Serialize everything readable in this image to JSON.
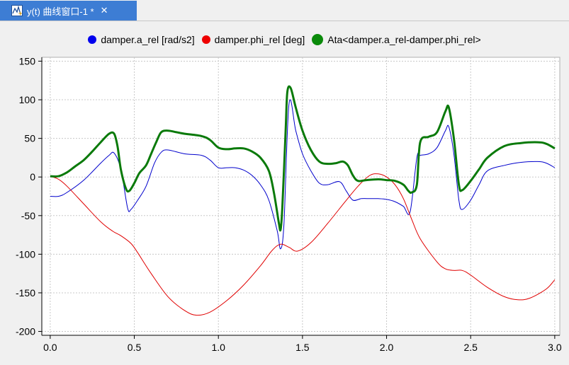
{
  "tab": {
    "title": "y(t) 曲线窗口-1 *",
    "icon": "plot-window-icon",
    "close_label": "✕",
    "color": "#3d7dd4"
  },
  "chart_data": {
    "type": "line",
    "xlim": [
      -0.05,
      3.03
    ],
    "ylim": [
      -205,
      155
    ],
    "xticks": [
      0.0,
      0.5,
      1.0,
      1.5,
      2.0,
      2.5,
      3.0
    ],
    "xtick_labels": [
      "0.0",
      "0.5",
      "1.0",
      "1.5",
      "2.0",
      "2.5",
      "3.0"
    ],
    "yticks": [
      150,
      100,
      50,
      0,
      -50,
      -100,
      -150,
      -200
    ],
    "ytick_labels": [
      "150",
      "100",
      "50",
      "0",
      "-50",
      "-100",
      "-150",
      "-200"
    ],
    "grid": true,
    "legend_placement": "top-center",
    "series": [
      {
        "name": "damper.a_rel [rad/s2]",
        "color": "#0000cc",
        "width": 1,
        "x": [
          0.0,
          0.05,
          0.1,
          0.2,
          0.3,
          0.35,
          0.38,
          0.42,
          0.46,
          0.48,
          0.52,
          0.57,
          0.62,
          0.66,
          0.7,
          0.8,
          0.9,
          0.95,
          1.0,
          1.05,
          1.1,
          1.15,
          1.2,
          1.25,
          1.3,
          1.35,
          1.37,
          1.39,
          1.42,
          1.46,
          1.5,
          1.55,
          1.6,
          1.65,
          1.72,
          1.76,
          1.8,
          1.85,
          1.9,
          1.95,
          2.0,
          2.05,
          2.1,
          2.14,
          2.18,
          2.2,
          2.25,
          2.3,
          2.35,
          2.37,
          2.4,
          2.43,
          2.45,
          2.5,
          2.55,
          2.6,
          2.7,
          2.8,
          2.9,
          2.95,
          3.0
        ],
        "y": [
          -25,
          -25,
          -20,
          -4,
          18,
          28,
          31,
          10,
          -40,
          -42,
          -30,
          -12,
          18,
          32,
          35,
          30,
          28,
          22,
          12,
          12,
          12,
          9,
          2,
          -10,
          -30,
          -70,
          -93,
          -60,
          95,
          60,
          30,
          8,
          -8,
          -10,
          -6,
          -18,
          -30,
          -28,
          -28,
          -28,
          -29,
          -32,
          -38,
          -45,
          25,
          28,
          30,
          38,
          60,
          65,
          30,
          -30,
          -42,
          -30,
          -10,
          8,
          15,
          19,
          20,
          18,
          12
        ]
      },
      {
        "name": "damper.phi_rel [deg]",
        "color": "#e00000",
        "width": 1,
        "x": [
          0.0,
          0.05,
          0.1,
          0.2,
          0.3,
          0.37,
          0.42,
          0.48,
          0.52,
          0.6,
          0.7,
          0.8,
          0.87,
          0.95,
          1.05,
          1.15,
          1.25,
          1.32,
          1.37,
          1.42,
          1.47,
          1.55,
          1.65,
          1.75,
          1.83,
          1.9,
          1.95,
          2.0,
          2.05,
          2.1,
          2.15,
          2.2,
          2.3,
          2.35,
          2.4,
          2.45,
          2.5,
          2.6,
          2.7,
          2.78,
          2.85,
          2.95,
          3.0
        ],
        "y": [
          1,
          -3,
          -12,
          -35,
          -58,
          -70,
          -76,
          -86,
          -98,
          -125,
          -155,
          -173,
          -179,
          -175,
          -160,
          -140,
          -115,
          -95,
          -87,
          -91,
          -96,
          -85,
          -60,
          -33,
          -12,
          2,
          4,
          0,
          -10,
          -28,
          -55,
          -80,
          -110,
          -119,
          -121,
          -121,
          -127,
          -143,
          -155,
          -159,
          -157,
          -145,
          -133
        ]
      },
      {
        "name": "Ata<damper.a_rel-damper.phi_rel>",
        "color": "#0a7a0a",
        "width": 3,
        "x": [
          0.0,
          0.05,
          0.1,
          0.15,
          0.2,
          0.25,
          0.3,
          0.35,
          0.38,
          0.4,
          0.42,
          0.45,
          0.47,
          0.5,
          0.53,
          0.57,
          0.6,
          0.63,
          0.66,
          0.7,
          0.75,
          0.8,
          0.9,
          0.95,
          1.0,
          1.05,
          1.1,
          1.15,
          1.2,
          1.25,
          1.3,
          1.33,
          1.36,
          1.37,
          1.38,
          1.4,
          1.41,
          1.43,
          1.46,
          1.5,
          1.55,
          1.6,
          1.65,
          1.7,
          1.74,
          1.77,
          1.8,
          1.83,
          1.88,
          1.95,
          2.0,
          2.05,
          2.1,
          2.13,
          2.15,
          2.18,
          2.2,
          2.25,
          2.3,
          2.35,
          2.37,
          2.4,
          2.43,
          2.45,
          2.5,
          2.55,
          2.6,
          2.7,
          2.8,
          2.9,
          2.95,
          3.0
        ],
        "y": [
          1,
          1,
          6,
          14,
          22,
          33,
          45,
          56,
          56,
          40,
          10,
          -15,
          -18,
          -8,
          5,
          15,
          30,
          45,
          58,
          60,
          58,
          56,
          53,
          48,
          38,
          36,
          37,
          37,
          33,
          25,
          8,
          -20,
          -60,
          -68,
          -40,
          60,
          110,
          115,
          90,
          60,
          35,
          20,
          17,
          18,
          20,
          15,
          2,
          -5,
          -4,
          -3,
          -4,
          -5,
          -10,
          -18,
          -20,
          -10,
          45,
          52,
          58,
          85,
          90,
          50,
          -10,
          -17,
          -5,
          10,
          25,
          40,
          44,
          45,
          43,
          37
        ]
      }
    ]
  }
}
